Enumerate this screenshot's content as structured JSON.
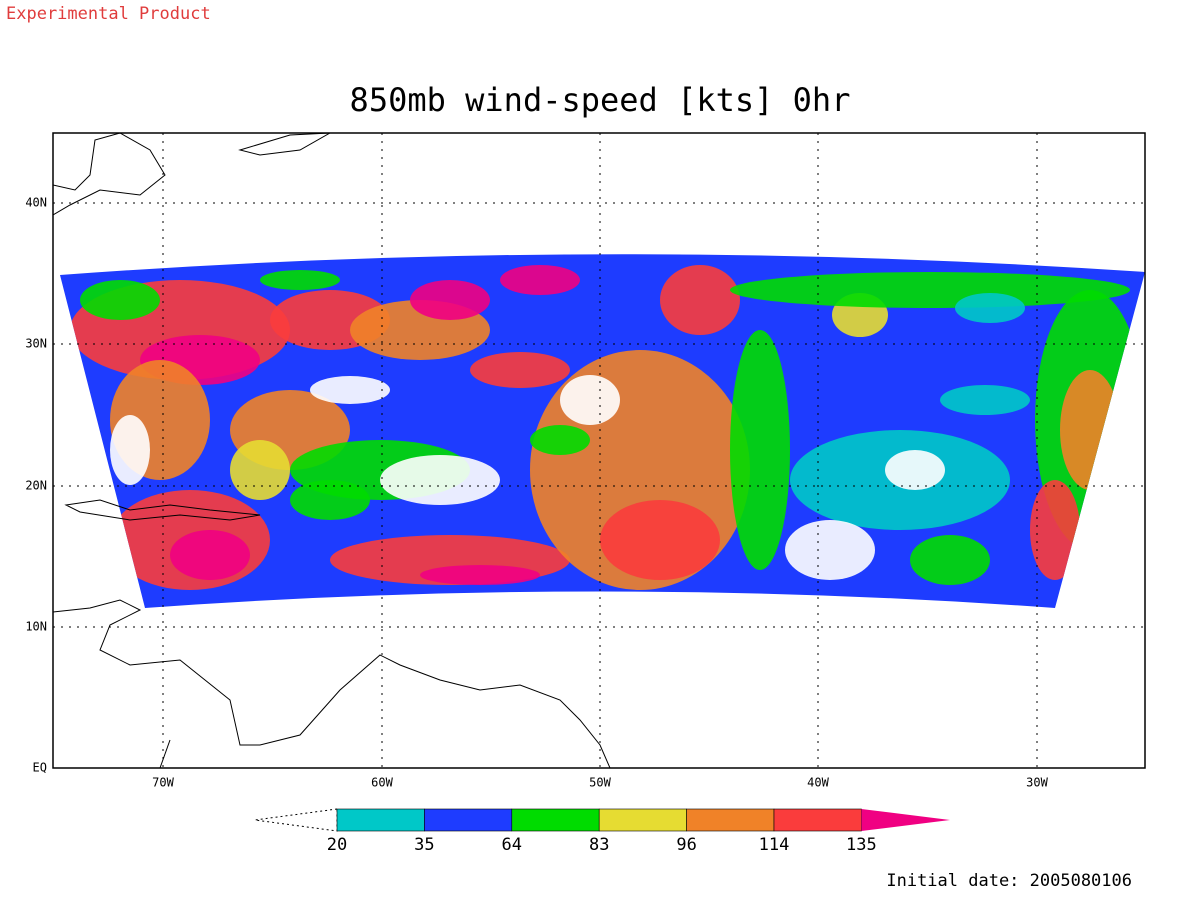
{
  "header": {
    "label": "Experimental Product"
  },
  "map": {
    "title": "850mb wind-speed [kts] 0hr",
    "lat_labels": [
      "40N",
      "30N",
      "20N",
      "10N",
      "EQ"
    ],
    "lon_labels": [
      "70W",
      "60W",
      "50W",
      "40W",
      "30W"
    ]
  },
  "colorbar": {
    "levels": [
      20,
      35,
      64,
      83,
      96,
      114,
      135
    ],
    "colors": [
      "#ffffff",
      "#00c8c8",
      "#1e3cff",
      "#00dc00",
      "#e6dc32",
      "#f08228",
      "#fa3c3c",
      "#f00082"
    ]
  },
  "footer": {
    "initial_date": "Initial date: 2005080106"
  }
}
